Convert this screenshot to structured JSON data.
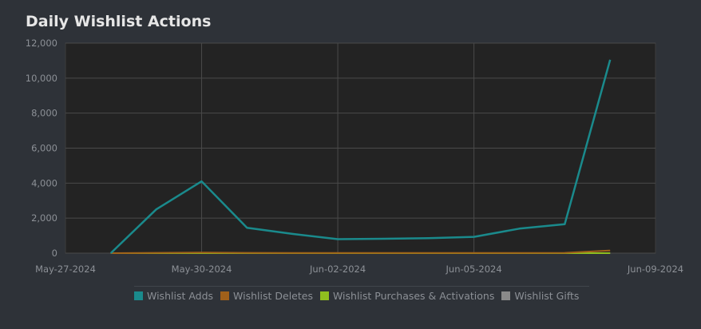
{
  "page": {
    "title": "Daily Wishlist Actions"
  },
  "colors": {
    "background": "#2e3238",
    "plot_background": "#232323",
    "grid": "#4a4a4a",
    "wishlist_adds": "#1a8a8c",
    "wishlist_deletes": "#a0601a",
    "wishlist_purchases": "#8fbf1f",
    "wishlist_gifts": "#8a8a8a"
  },
  "chart_data": {
    "type": "line",
    "title": "Daily Wishlist Actions",
    "xlabel": "",
    "ylabel": "",
    "xlim": [
      "2024-05-27",
      "2024-06-09"
    ],
    "ylim": [
      0,
      12000
    ],
    "x_ticks": [
      "May-27-2024",
      "May-30-2024",
      "Jun-02-2024",
      "Jun-05-2024",
      "Jun-09-2024"
    ],
    "y_ticks": [
      "0",
      "2,000",
      "4,000",
      "6,000",
      "8,000",
      "10,000",
      "12,000"
    ],
    "grid": true,
    "legend_position": "bottom",
    "x": [
      "2024-05-28",
      "2024-05-29",
      "2024-05-30",
      "2024-05-31",
      "2024-06-01",
      "2024-06-02",
      "2024-06-03",
      "2024-06-04",
      "2024-06-05",
      "2024-06-06",
      "2024-06-07",
      "2024-06-08"
    ],
    "series": [
      {
        "name": "Wishlist Adds",
        "color": "#1a8a8c",
        "values": [
          0,
          2500,
          4100,
          1450,
          1100,
          800,
          820,
          860,
          930,
          1400,
          1650,
          11050
        ]
      },
      {
        "name": "Wishlist Deletes",
        "color": "#a0601a",
        "values": [
          0,
          20,
          30,
          20,
          15,
          10,
          10,
          10,
          12,
          15,
          20,
          150
        ]
      },
      {
        "name": "Wishlist Purchases & Activations",
        "color": "#8fbf1f",
        "values": [
          0,
          0,
          0,
          0,
          0,
          0,
          0,
          0,
          0,
          0,
          0,
          0
        ]
      },
      {
        "name": "Wishlist Gifts",
        "color": "#8a8a8a",
        "values": [
          0,
          0,
          0,
          0,
          0,
          0,
          0,
          0,
          0,
          0,
          0,
          0
        ]
      }
    ]
  }
}
